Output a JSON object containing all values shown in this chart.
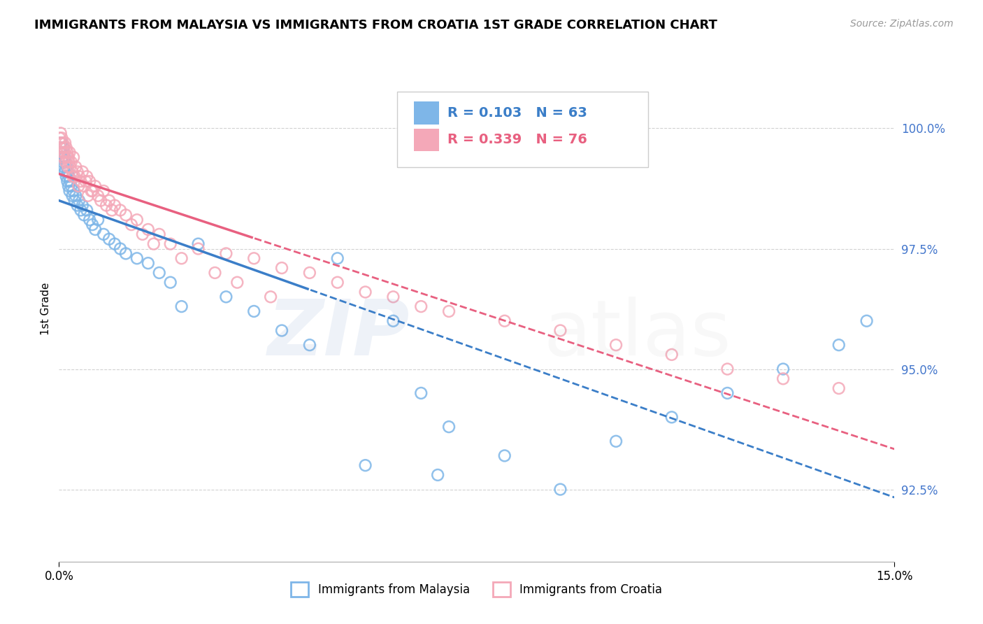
{
  "title": "IMMIGRANTS FROM MALAYSIA VS IMMIGRANTS FROM CROATIA 1ST GRADE CORRELATION CHART",
  "source": "Source: ZipAtlas.com",
  "ylabel": "1st Grade",
  "xlim": [
    0.0,
    15.0
  ],
  "ylim": [
    91.0,
    101.5
  ],
  "R_malaysia": 0.103,
  "N_malaysia": 63,
  "R_croatia": 0.339,
  "N_croatia": 76,
  "color_malaysia": "#7EB6E8",
  "color_croatia": "#F4A8B8",
  "trend_color_malaysia": "#3B7EC8",
  "trend_color_croatia": "#E86080",
  "malaysia_x": [
    0.02,
    0.03,
    0.04,
    0.05,
    0.06,
    0.07,
    0.08,
    0.09,
    0.1,
    0.11,
    0.12,
    0.13,
    0.14,
    0.15,
    0.16,
    0.17,
    0.18,
    0.19,
    0.2,
    0.22,
    0.24,
    0.26,
    0.28,
    0.3,
    0.33,
    0.36,
    0.39,
    0.42,
    0.45,
    0.5,
    0.55,
    0.6,
    0.65,
    0.7,
    0.8,
    0.9,
    1.0,
    1.1,
    1.2,
    1.4,
    1.6,
    1.8,
    2.0,
    2.5,
    3.0,
    3.5,
    4.0,
    4.5,
    5.0,
    6.0,
    6.5,
    7.0,
    8.0,
    9.0,
    10.0,
    11.0,
    12.0,
    13.0,
    14.0,
    14.5,
    2.2,
    5.5,
    6.8
  ],
  "malaysia_y": [
    99.5,
    99.6,
    99.7,
    99.5,
    99.4,
    99.3,
    99.6,
    99.2,
    99.4,
    99.1,
    99.3,
    99.0,
    99.2,
    98.9,
    99.1,
    98.8,
    99.0,
    98.7,
    98.9,
    98.8,
    98.6,
    98.7,
    98.5,
    98.6,
    98.4,
    98.5,
    98.3,
    98.4,
    98.2,
    98.3,
    98.1,
    98.0,
    97.9,
    98.1,
    97.8,
    97.7,
    97.6,
    97.5,
    97.4,
    97.3,
    97.2,
    97.0,
    96.8,
    97.6,
    96.5,
    96.2,
    95.8,
    95.5,
    97.3,
    96.0,
    94.5,
    93.8,
    93.2,
    92.5,
    93.5,
    94.0,
    94.5,
    95.0,
    95.5,
    96.0,
    96.3,
    93.0,
    92.8
  ],
  "croatia_x": [
    0.01,
    0.02,
    0.03,
    0.04,
    0.05,
    0.06,
    0.07,
    0.08,
    0.09,
    0.1,
    0.11,
    0.12,
    0.13,
    0.14,
    0.15,
    0.16,
    0.17,
    0.18,
    0.19,
    0.2,
    0.22,
    0.24,
    0.26,
    0.28,
    0.3,
    0.33,
    0.36,
    0.39,
    0.42,
    0.45,
    0.5,
    0.55,
    0.6,
    0.65,
    0.7,
    0.8,
    0.9,
    1.0,
    1.1,
    1.2,
    1.4,
    1.6,
    1.8,
    2.0,
    2.5,
    3.0,
    3.5,
    4.0,
    4.5,
    5.0,
    5.5,
    6.0,
    7.0,
    8.0,
    9.0,
    10.0,
    11.0,
    12.0,
    13.0,
    14.0,
    0.25,
    0.35,
    0.48,
    0.52,
    0.58,
    0.75,
    0.85,
    0.95,
    1.3,
    1.5,
    1.7,
    2.2,
    2.8,
    3.2,
    3.8,
    6.5
  ],
  "croatia_y": [
    99.8,
    99.7,
    99.9,
    99.6,
    99.8,
    99.5,
    99.7,
    99.4,
    99.6,
    99.5,
    99.7,
    99.3,
    99.6,
    99.4,
    99.5,
    99.2,
    99.4,
    99.3,
    99.5,
    99.2,
    99.3,
    99.1,
    99.4,
    99.0,
    99.2,
    99.1,
    99.0,
    98.9,
    99.1,
    98.8,
    99.0,
    98.9,
    98.7,
    98.8,
    98.6,
    98.7,
    98.5,
    98.4,
    98.3,
    98.2,
    98.1,
    97.9,
    97.8,
    97.6,
    97.5,
    97.4,
    97.3,
    97.1,
    97.0,
    96.8,
    96.6,
    96.5,
    96.2,
    96.0,
    95.8,
    95.5,
    95.3,
    95.0,
    94.8,
    94.6,
    99.0,
    98.8,
    98.9,
    98.6,
    98.7,
    98.5,
    98.4,
    98.3,
    98.0,
    97.8,
    97.6,
    97.3,
    97.0,
    96.8,
    96.5,
    96.3
  ]
}
